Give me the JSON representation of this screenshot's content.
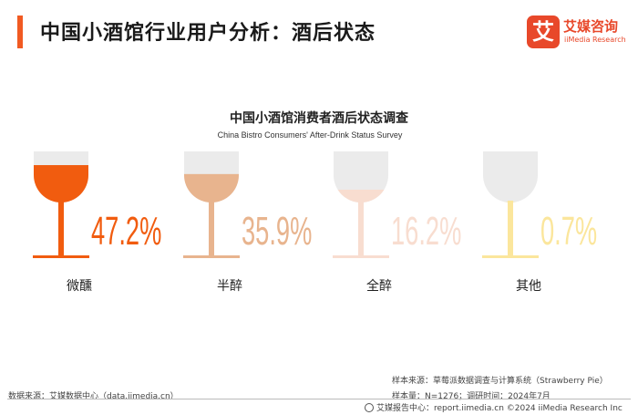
{
  "header": {
    "title": "中国小酒馆行业用户分析：酒后状态",
    "accent_color": "#f15a22"
  },
  "logo": {
    "mark": "艾",
    "name_cn": "艾媒咨询",
    "name_en": "iiMedia Research",
    "color": "#e8482a"
  },
  "chart_data": {
    "type": "bar",
    "title": "中国小酒馆消费者酒后状态调查",
    "subtitle": "China Bistro Consumers' After-Drink Status Survey",
    "unit": "%",
    "categories": [
      "微醺",
      "半醉",
      "全醉",
      "其他"
    ],
    "values": [
      47.2,
      35.9,
      16.2,
      0.7
    ],
    "value_labels": [
      "47.2%",
      "35.9%",
      "16.2%",
      "0.7%"
    ],
    "colors": [
      "#f15c0f",
      "#e8b48e",
      "#f8ddd0",
      "#fbe69c"
    ],
    "empty_color": "#ebebeb"
  },
  "footer": {
    "data_source": "数据来源：艾媒数据中心（data.iimedia.cn）",
    "sample_source": "样本来源：草莓派数据调查与计算系统（Strawberry Pie）",
    "sample_info": "样本量：N=1276；调研时间：2024年7月",
    "bar_text": "艾媒报告中心：report.iimedia.cn    ©2024  iiMedia Research  Inc"
  }
}
